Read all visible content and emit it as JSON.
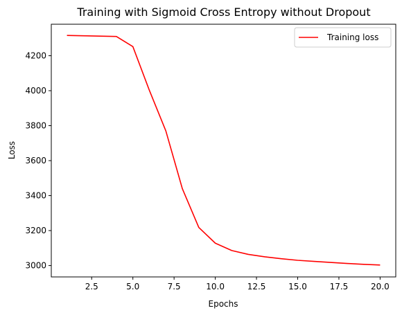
{
  "chart_data": {
    "type": "line",
    "title": "Training with Sigmoid Cross Entropy without Dropout",
    "xlabel": "Epochs",
    "ylabel": "Loss",
    "xlim": [
      0.05,
      20.95
    ],
    "ylim": [
      2935,
      4380
    ],
    "x_ticks": [
      2.5,
      5.0,
      7.5,
      10.0,
      12.5,
      15.0,
      17.5,
      20.0
    ],
    "x_tick_labels": [
      "2.5",
      "5.0",
      "7.5",
      "10.0",
      "12.5",
      "15.0",
      "17.5",
      "20.0"
    ],
    "y_ticks": [
      3000,
      3200,
      3400,
      3600,
      3800,
      4000,
      4200
    ],
    "y_tick_labels": [
      "3000",
      "3200",
      "3400",
      "3600",
      "3800",
      "4000",
      "4200"
    ],
    "grid": false,
    "legend_position": "top-right",
    "series": [
      {
        "name": "Training loss",
        "color": "#ff0000",
        "x": [
          1,
          2,
          3,
          4,
          5,
          6,
          7,
          8,
          9,
          10,
          11,
          12,
          13,
          14,
          15,
          16,
          17,
          18,
          19,
          20
        ],
        "y": [
          4316,
          4314,
          4312,
          4310,
          4252,
          4002,
          3770,
          3440,
          3218,
          3128,
          3086,
          3064,
          3050,
          3039,
          3030,
          3024,
          3018,
          3012,
          3007,
          3003
        ]
      }
    ]
  }
}
